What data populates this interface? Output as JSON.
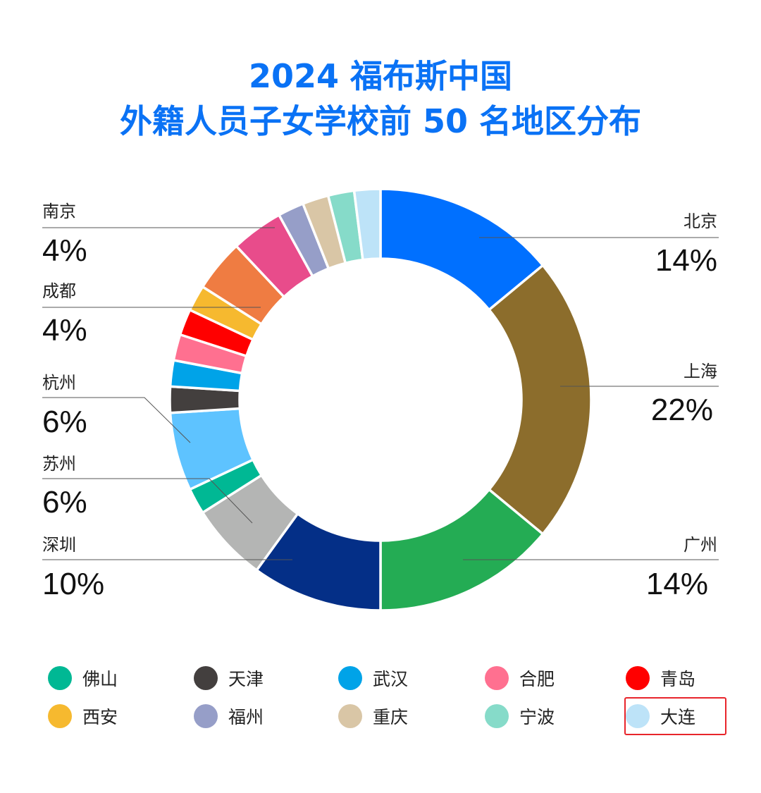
{
  "title_line1": "2024 福布斯中国",
  "title_line2": "外籍人员子女学校前 50 名地区分布",
  "chart_data": {
    "type": "pie",
    "donut": true,
    "title": "2024 福布斯中国 外籍人员子女学校前 50 名地区分布",
    "unit": "%",
    "start": "top, clockwise",
    "categories": [
      "北京",
      "上海",
      "广州",
      "深圳",
      "苏州",
      "佛山",
      "杭州",
      "天津",
      "武汉",
      "合肥",
      "青岛",
      "西安",
      "成都",
      "南京",
      "福州",
      "重庆",
      "宁波",
      "大连"
    ],
    "values": [
      14,
      22,
      14,
      10,
      6,
      2,
      6,
      2,
      2,
      2,
      2,
      2,
      4,
      4,
      2,
      2,
      2,
      2
    ],
    "colors": [
      "#0070ff",
      "#8c6d2c",
      "#24ac54",
      "#042f87",
      "#b4b5b4",
      "#00b894",
      "#5ec3ff",
      "#433f3e",
      "#00a3e8",
      "#ff7090",
      "#ff0000",
      "#f6b92f",
      "#ef7c42",
      "#e84c8b",
      "#969ec8",
      "#d9c6a6",
      "#86dbc9",
      "#bde3f8"
    ],
    "callouts": [
      "北京",
      "上海",
      "广州",
      "深圳",
      "苏州",
      "杭州",
      "成都",
      "南京"
    ],
    "legend": [
      "佛山",
      "天津",
      "武汉",
      "合肥",
      "青岛",
      "西安",
      "福州",
      "重庆",
      "宁波",
      "大连"
    ],
    "legend_highlight": "大连",
    "highlight_color": "#e8252b"
  }
}
